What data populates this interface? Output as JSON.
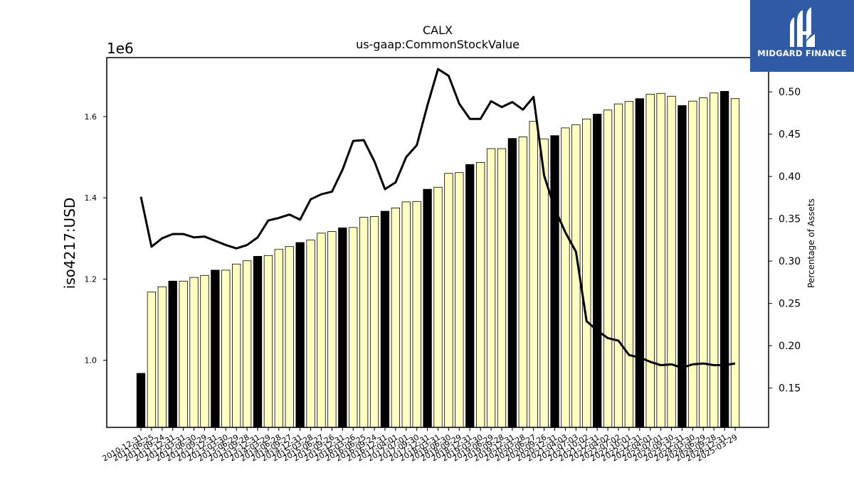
{
  "logo": {
    "text": "MIDGARD FINANCE",
    "background": "#2e5aa6"
  },
  "chart_data": {
    "type": "bar",
    "title": "CALX",
    "subtitle": "us-gaap:CommonStockValue",
    "ylabel": "iso4217:USD",
    "y_multiplier": "1e6",
    "y2label": "Percentage of Assets",
    "ylim": [
      835000,
      1745000
    ],
    "y2lim": [
      0.1035,
      0.5405
    ],
    "yticks": [
      1.0,
      1.2,
      1.4,
      1.6
    ],
    "y2ticks": [
      0.15,
      0.2,
      0.25,
      0.3,
      0.35,
      0.4,
      0.45,
      0.5
    ],
    "grid": false,
    "colors": {
      "bar_annual": "#000000",
      "bar_quarter": "#ffffc0",
      "bar_edge": "#000000",
      "line": "#000000"
    },
    "categories": [
      "2010-12-31",
      "2011-06-25",
      "2011-09-24",
      "2011-12-31",
      "2012-03-31",
      "2012-06-30",
      "2012-09-29",
      "2012-12-31",
      "2013-03-30",
      "2013-06-29",
      "2013-09-28",
      "2013-12-31",
      "2014-03-29",
      "2014-06-28",
      "2014-09-27",
      "2014-12-31",
      "2015-03-28",
      "2015-06-27",
      "2015-09-26",
      "2015-12-31",
      "2016-03-26",
      "2016-06-25",
      "2016-09-24",
      "2016-12-31",
      "2017-04-01",
      "2017-07-01",
      "2017-09-30",
      "2017-12-31",
      "2018-03-31",
      "2018-06-30",
      "2018-09-29",
      "2018-12-31",
      "2019-03-30",
      "2019-06-29",
      "2019-09-28",
      "2019-12-31",
      "2020-03-28",
      "2020-06-27",
      "2020-09-26",
      "2020-12-31",
      "2021-04-03",
      "2021-07-03",
      "2021-10-02",
      "2021-12-31",
      "2022-04-02",
      "2022-07-02",
      "2022-10-01",
      "2022-12-31",
      "2023-04-01",
      "2023-07-01",
      "2023-09-30",
      "2023-12-31",
      "2024-03-30",
      "2024-06-29",
      "2024-09-28",
      "2024-12-31",
      "2025-03-29"
    ],
    "series": [
      {
        "kind": "bar",
        "values": [
          968000,
          1168000,
          1181000,
          1195000,
          1195000,
          1204000,
          1209000,
          1222000,
          1222000,
          1237000,
          1245000,
          1256000,
          1258000,
          1273000,
          1280000,
          1290000,
          1296000,
          1313000,
          1317000,
          1326000,
          1327000,
          1352000,
          1354000,
          1367000,
          1375000,
          1390000,
          1391000,
          1421000,
          1426000,
          1460000,
          1462000,
          1482000,
          1487000,
          1521000,
          1521000,
          1546000,
          1550000,
          1588000,
          1545000,
          1553000,
          1572000,
          1580000,
          1594000,
          1606000,
          1616000,
          1631000,
          1637000,
          1644000,
          1655000,
          1657000,
          1650000,
          1627000,
          1638000,
          1646000,
          1658000,
          1662000,
          1644000
        ],
        "annual": [
          true,
          false,
          false,
          true,
          false,
          false,
          false,
          true,
          false,
          false,
          false,
          true,
          false,
          false,
          false,
          true,
          false,
          false,
          false,
          true,
          false,
          false,
          false,
          true,
          false,
          false,
          false,
          true,
          false,
          false,
          false,
          true,
          false,
          false,
          false,
          true,
          false,
          false,
          false,
          true,
          false,
          false,
          false,
          true,
          false,
          false,
          false,
          true,
          false,
          false,
          false,
          true,
          false,
          false,
          false,
          true,
          false
        ]
      },
      {
        "kind": "line",
        "axis": "right",
        "values": [
          0.376,
          0.317,
          0.327,
          0.332,
          0.332,
          0.328,
          0.329,
          0.324,
          0.319,
          0.315,
          0.319,
          0.328,
          0.348,
          0.351,
          0.355,
          0.349,
          0.373,
          0.379,
          0.382,
          0.408,
          0.442,
          0.443,
          0.418,
          0.385,
          0.393,
          0.423,
          0.437,
          0.484,
          0.527,
          0.519,
          0.486,
          0.468,
          0.468,
          0.489,
          0.482,
          0.488,
          0.479,
          0.494,
          0.401,
          0.362,
          0.334,
          0.311,
          0.229,
          0.218,
          0.209,
          0.206,
          0.189,
          0.186,
          0.181,
          0.177,
          0.178,
          0.174,
          0.178,
          0.179,
          0.177,
          0.177,
          0.179
        ]
      }
    ]
  }
}
